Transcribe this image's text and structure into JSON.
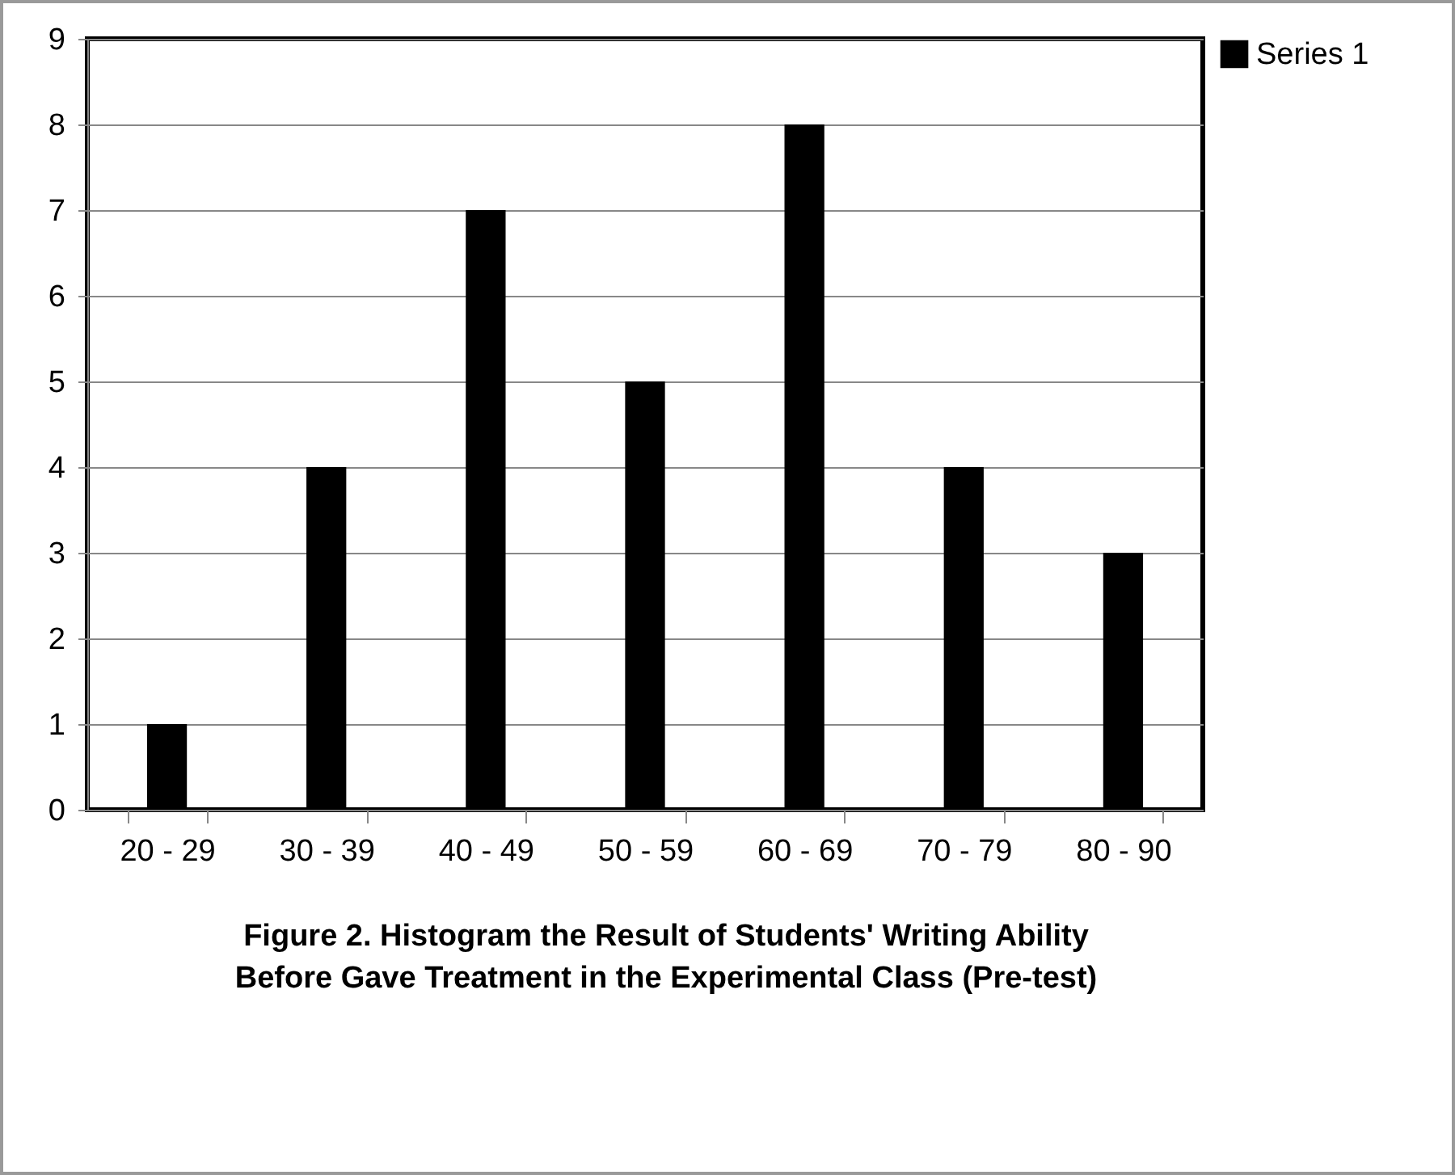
{
  "chart_data": {
    "type": "bar",
    "categories": [
      "20 - 29",
      "30 - 39",
      "40 - 49",
      "50 - 59",
      "60 - 69",
      "70 - 79",
      "80 - 90"
    ],
    "series": [
      {
        "name": "Series 1",
        "color": "#000000",
        "values": [
          1,
          4,
          7,
          5,
          8,
          4,
          3
        ]
      }
    ],
    "ylim": [
      0,
      9
    ],
    "yticks": [
      0,
      1,
      2,
      3,
      4,
      5,
      6,
      7,
      8,
      9
    ],
    "grid": "y",
    "legend": "right",
    "annotations": [
      "Figure 2. Histogram the Result of Students' Writing Ability",
      "Before Gave Treatment in the Experimental Class (Pre-test)"
    ]
  }
}
